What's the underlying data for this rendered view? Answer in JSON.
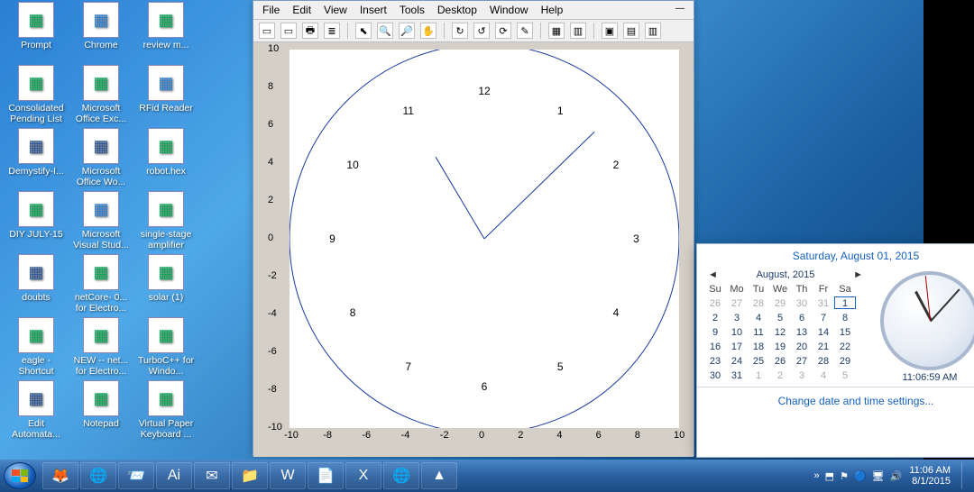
{
  "desktop_icons": [
    {
      "label": "Prompt",
      "col": 0,
      "row": 0,
      "cls": ""
    },
    {
      "label": "Chrome",
      "col": 1,
      "row": 0,
      "cls": "blue"
    },
    {
      "label": "review m...",
      "col": 2,
      "row": 0,
      "cls": ""
    },
    {
      "label": "Consolidated Pending List",
      "col": 0,
      "row": 1,
      "cls": ""
    },
    {
      "label": "Microsoft Office Exc...",
      "col": 1,
      "row": 1,
      "cls": ""
    },
    {
      "label": "RFid Reader",
      "col": 2,
      "row": 1,
      "cls": "blue"
    },
    {
      "label": "Demystify-I...",
      "col": 0,
      "row": 2,
      "cls": "word"
    },
    {
      "label": "Microsoft Office Wo...",
      "col": 1,
      "row": 2,
      "cls": "word"
    },
    {
      "label": "robot.hex",
      "col": 2,
      "row": 2,
      "cls": ""
    },
    {
      "label": "DIY JULY-15",
      "col": 0,
      "row": 3,
      "cls": ""
    },
    {
      "label": "Microsoft Visual Stud...",
      "col": 1,
      "row": 3,
      "cls": "blue"
    },
    {
      "label": "single-stage amplifier",
      "col": 2,
      "row": 3,
      "cls": ""
    },
    {
      "label": "doubts",
      "col": 0,
      "row": 4,
      "cls": "word"
    },
    {
      "label": "netCore- 0... for Electro...",
      "col": 1,
      "row": 4,
      "cls": ""
    },
    {
      "label": "solar (1)",
      "col": 2,
      "row": 4,
      "cls": ""
    },
    {
      "label": "eagle - Shortcut",
      "col": 0,
      "row": 5,
      "cls": ""
    },
    {
      "label": "NEW -- net... for Electro...",
      "col": 1,
      "row": 5,
      "cls": ""
    },
    {
      "label": "TurboC++ for Windo...",
      "col": 2,
      "row": 5,
      "cls": ""
    },
    {
      "label": "Edit Automata...",
      "col": 0,
      "row": 6,
      "cls": "word"
    },
    {
      "label": "Notepad",
      "col": 1,
      "row": 6,
      "cls": ""
    },
    {
      "label": "Virtual Paper Keyboard ...",
      "col": 2,
      "row": 6,
      "cls": ""
    }
  ],
  "figwin": {
    "menus": [
      "File",
      "Edit",
      "View",
      "Insert",
      "Tools",
      "Desktop",
      "Window",
      "Help"
    ],
    "toolbar_glyphs": [
      "▭",
      "▭",
      "🖶",
      "≣",
      "⬉",
      "🔍",
      "🔎",
      "✋",
      "↻",
      "↺",
      "⟳",
      "✎",
      "▦",
      "▥",
      "▣",
      "▤",
      "▥"
    ],
    "axis": {
      "xlim": [
        -10,
        10
      ],
      "ylim": [
        -10,
        10
      ],
      "xticks": [
        -10,
        -8,
        -6,
        -4,
        -2,
        0,
        2,
        4,
        6,
        8,
        10
      ],
      "yticks": [
        -10,
        -8,
        -6,
        -4,
        -2,
        0,
        2,
        4,
        6,
        8,
        10
      ]
    },
    "clock": {
      "radius": 10,
      "hour_label_radius": 7.8,
      "hours": [
        12,
        1,
        2,
        3,
        4,
        5,
        6,
        7,
        8,
        9,
        10,
        11
      ],
      "hour_hand": {
        "angle_deg": 330,
        "len": 5.0
      },
      "minute_hand": {
        "angle_deg": 45,
        "len": 8.0
      },
      "line_color": "#1a3aa0",
      "line_width": 1
    }
  },
  "datetime_popup": {
    "title": "Saturday, August 01, 2015",
    "month": "August, 2015",
    "dow": [
      "Su",
      "Mo",
      "Tu",
      "We",
      "Th",
      "Fr",
      "Sa"
    ],
    "weeks": [
      [
        {
          "d": 26,
          "o": 1
        },
        {
          "d": 27,
          "o": 1
        },
        {
          "d": 28,
          "o": 1
        },
        {
          "d": 29,
          "o": 1
        },
        {
          "d": 30,
          "o": 1
        },
        {
          "d": 31,
          "o": 1
        },
        {
          "d": 1,
          "t": 1
        }
      ],
      [
        {
          "d": 2
        },
        {
          "d": 3
        },
        {
          "d": 4
        },
        {
          "d": 5
        },
        {
          "d": 6
        },
        {
          "d": 7
        },
        {
          "d": 8
        }
      ],
      [
        {
          "d": 9
        },
        {
          "d": 10
        },
        {
          "d": 11
        },
        {
          "d": 12
        },
        {
          "d": 13
        },
        {
          "d": 14
        },
        {
          "d": 15
        }
      ],
      [
        {
          "d": 16
        },
        {
          "d": 17
        },
        {
          "d": 18
        },
        {
          "d": 19
        },
        {
          "d": 20
        },
        {
          "d": 21
        },
        {
          "d": 22
        }
      ],
      [
        {
          "d": 23
        },
        {
          "d": 24
        },
        {
          "d": 25
        },
        {
          "d": 26
        },
        {
          "d": 27
        },
        {
          "d": 28
        },
        {
          "d": 29
        }
      ],
      [
        {
          "d": 30
        },
        {
          "d": 31
        },
        {
          "d": 1,
          "o": 1
        },
        {
          "d": 2,
          "o": 1
        },
        {
          "d": 3,
          "o": 1
        },
        {
          "d": 4,
          "o": 1
        },
        {
          "d": 5,
          "o": 1
        }
      ]
    ],
    "digital_time": "11:06:59 AM",
    "analog": {
      "hour_deg": 332,
      "min_deg": 42,
      "sec_deg": 354
    },
    "settings_link": "Change date and time settings..."
  },
  "taskbar": {
    "apps": [
      "🦊",
      "🌐",
      "📨",
      "Ai",
      "✉",
      "📁",
      "W",
      "📄",
      "X",
      "🌐",
      "▲"
    ],
    "tray": [
      "»",
      "⬒",
      "⚑",
      "🔵",
      "🖥",
      "🔊"
    ],
    "time": "11:06 AM",
    "date": "8/1/2015"
  }
}
